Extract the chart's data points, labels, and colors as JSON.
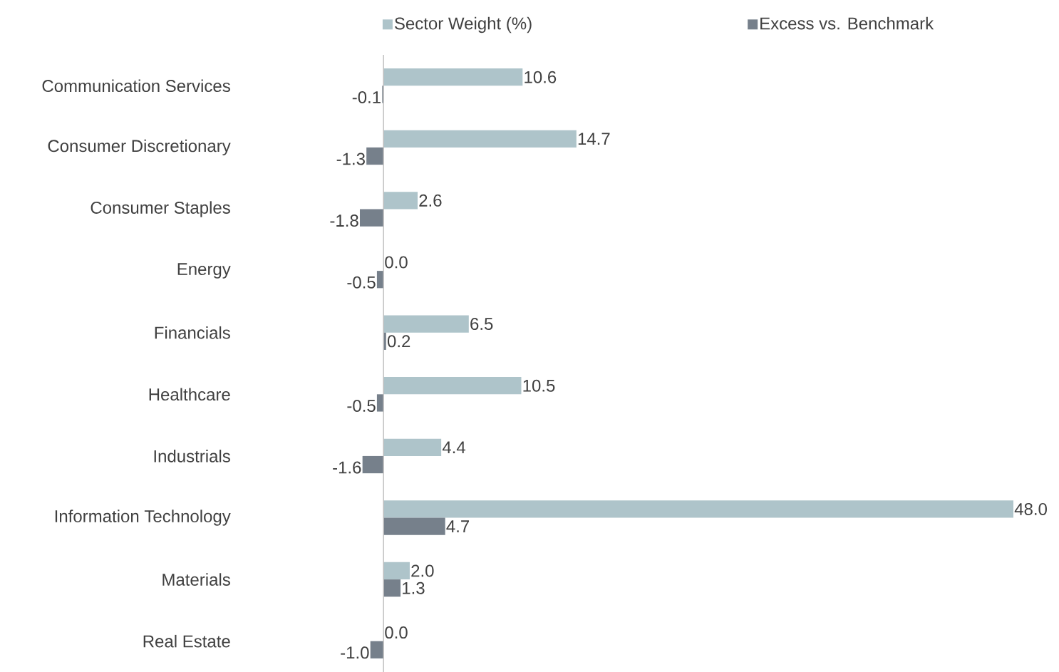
{
  "chart_data": {
    "type": "bar",
    "orientation": "horizontal",
    "categories": [
      "Communication Services",
      "Consumer Discretionary",
      "Consumer Staples",
      "Energy",
      "Financials",
      "Healthcare",
      "Industrials",
      "Information Technology",
      "Materials",
      "Real Estate"
    ],
    "series": [
      {
        "name": "Sector Weight (%)",
        "color": "#aec4ca",
        "values": [
          10.6,
          14.7,
          2.6,
          0.0,
          6.5,
          10.5,
          4.4,
          48.0,
          2.0,
          0.0
        ],
        "value_labels": [
          "10.6",
          "14.7",
          "2.6",
          "0.0",
          "6.5",
          "10.5",
          "4.4",
          "48.0",
          "2.0",
          "0.0"
        ]
      },
      {
        "name": "Excess vs. Benchmark",
        "color": "#76808b",
        "values": [
          -0.1,
          -1.3,
          -1.8,
          -0.5,
          0.2,
          -0.5,
          -1.6,
          4.7,
          1.3,
          -1.0
        ],
        "value_labels": [
          "-0.1",
          "-1.3",
          "-1.8",
          "-0.5",
          "0.2",
          "-0.5",
          "-1.6",
          "4.7",
          "1.3",
          "-1.0"
        ]
      }
    ],
    "tick_labels": "y",
    "grid": false,
    "legend": "top"
  }
}
